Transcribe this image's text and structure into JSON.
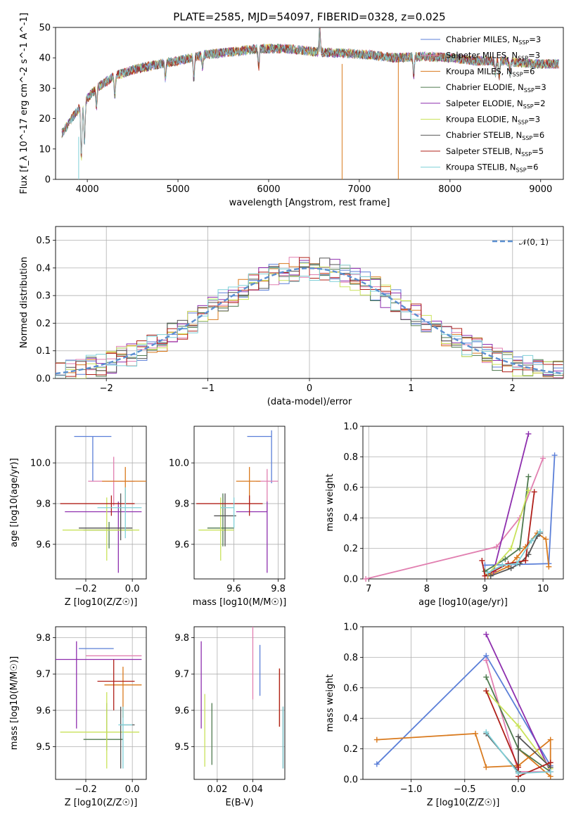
{
  "figure": {
    "title": "PLATE=2585, MJD=54097, FIBERID=0328, z=0.025"
  },
  "series_styles": [
    {
      "name": "Chabrier MILES",
      "nssp": "3",
      "color": "#5b7fd8"
    },
    {
      "name": "Salpeter MILES",
      "nssp": "3",
      "color": "#e17fb0"
    },
    {
      "name": "Kroupa MILES",
      "nssp": "6",
      "color": "#d97a1e"
    },
    {
      "name": "Chabrier ELODIE",
      "nssp": "3",
      "color": "#4f7a4f"
    },
    {
      "name": "Salpeter ELODIE",
      "nssp": "2",
      "color": "#8e2fae"
    },
    {
      "name": "Kroupa ELODIE",
      "nssp": "3",
      "color": "#c9e25a"
    },
    {
      "name": "Chabrier STELIB",
      "nssp": "6",
      "color": "#555555"
    },
    {
      "name": "Salpeter STELIB",
      "nssp": "5",
      "color": "#b0201a"
    },
    {
      "name": "Kroupa STELIB",
      "nssp": "6",
      "color": "#7fd0d8"
    }
  ],
  "chart_data": [
    {
      "id": "spectrum",
      "type": "line",
      "title": "PLATE=2585, MJD=54097, FIBERID=0328, z=0.025",
      "xlabel": "wavelength [Angstrom, rest frame]",
      "ylabel": "Flux [f_λ 10^-17 erg cm^-2 s^-1 A^-1]",
      "xlim": [
        3650,
        9250
      ],
      "ylim": [
        0,
        50
      ],
      "xticks": [
        4000,
        5000,
        6000,
        7000,
        8000,
        9000
      ],
      "yticks": [
        0,
        10,
        20,
        30,
        40,
        50
      ],
      "legend": "top-right",
      "continuum_x": [
        3720,
        3850,
        3950,
        4100,
        4300,
        4500,
        4800,
        5000,
        5300,
        5600,
        5900,
        6200,
        6500,
        6800,
        7100,
        7400,
        7700,
        8000,
        8300,
        8600,
        8900
      ],
      "continuum_y": [
        15,
        21,
        25,
        30,
        34,
        36,
        38,
        39,
        41,
        42,
        43,
        43,
        42,
        41.5,
        41,
        40,
        40.5,
        40,
        39,
        39,
        38
      ]
    },
    {
      "id": "residuals",
      "type": "histogram",
      "xlabel": "(data-model)/error",
      "ylabel": "Normed distribution",
      "xlim": [
        -2.5,
        2.5
      ],
      "ylim": [
        0,
        0.55
      ],
      "xticks": [
        -2,
        -1,
        0,
        1,
        2
      ],
      "yticks": [
        0.0,
        0.1,
        0.2,
        0.3,
        0.4,
        0.5
      ],
      "reference": {
        "label": "𝒩(0, 1)",
        "mean": 0,
        "sigma": 1,
        "color": "#5b8fd0"
      },
      "legend": "top-right"
    },
    {
      "id": "age_vs_Z",
      "type": "errorbar",
      "xlabel": "Z [log10(Z/Z☉)]",
      "ylabel": "age  [log10(age/yr)]",
      "xlim": [
        -0.33,
        0.06
      ],
      "ylim": [
        9.43,
        10.18
      ],
      "xticks": [
        -0.2,
        0.0
      ],
      "yticks": [
        9.6,
        9.8,
        10.0
      ],
      "points": [
        {
          "x": -0.17,
          "y": 10.13,
          "xerr": [
            0.08,
            0.08
          ],
          "yerr": [
            0.22,
            0.0
          ]
        },
        {
          "x": -0.08,
          "y": 9.91,
          "xerr": [
            0.11,
            0.09
          ],
          "yerr": [
            0.12,
            0.12
          ]
        },
        {
          "x": -0.03,
          "y": 9.91,
          "xerr": [
            0.1,
            0.09
          ],
          "yerr": [
            0.11,
            0.07
          ]
        },
        {
          "x": -0.1,
          "y": 9.67,
          "xerr": [
            0.11,
            0.1
          ],
          "yerr": [
            0.09,
            0.04
          ]
        },
        {
          "x": -0.06,
          "y": 9.76,
          "xerr": [
            0.23,
            0.1
          ],
          "yerr": [
            0.3,
            0.05
          ]
        },
        {
          "x": -0.11,
          "y": 9.67,
          "xerr": [
            0.19,
            0.14
          ],
          "yerr": [
            0.15,
            0.16
          ]
        },
        {
          "x": -0.05,
          "y": 9.68,
          "xerr": [
            0.18,
            0.05
          ],
          "yerr": [
            0.06,
            0.17
          ]
        },
        {
          "x": -0.09,
          "y": 9.8,
          "xerr": [
            0.22,
            0.1
          ],
          "yerr": [
            0.06,
            0.04
          ]
        },
        {
          "x": -0.03,
          "y": 9.78,
          "xerr": [
            0.12,
            0.07
          ],
          "yerr": [
            0.15,
            0.1
          ]
        }
      ]
    },
    {
      "id": "age_vs_mass",
      "type": "errorbar",
      "xlabel": "mass [log10(M/M☉)]",
      "ylabel": "",
      "xlim": [
        9.42,
        9.83
      ],
      "ylim": [
        9.43,
        10.18
      ],
      "xticks": [
        9.6,
        9.8
      ],
      "yticks": [
        9.6,
        9.8,
        10.0
      ],
      "points": [
        {
          "x": 9.77,
          "y": 10.13,
          "xerr": [
            0.11,
            0.0
          ],
          "yerr": [
            0.23,
            0.03
          ]
        },
        {
          "x": 9.75,
          "y": 9.91,
          "xerr": [
            0.05,
            0.05
          ],
          "yerr": [
            0.15,
            0.06
          ]
        },
        {
          "x": 9.67,
          "y": 9.91,
          "xerr": [
            0.06,
            0.05
          ],
          "yerr": [
            0.12,
            0.07
          ]
        },
        {
          "x": 9.55,
          "y": 9.68,
          "xerr": [
            0.07,
            0.05
          ],
          "yerr": [
            0.09,
            0.17
          ]
        },
        {
          "x": 9.75,
          "y": 9.76,
          "xerr": [
            0.14,
            0.0
          ],
          "yerr": [
            0.3,
            0.05
          ]
        },
        {
          "x": 9.54,
          "y": 9.67,
          "xerr": [
            0.1,
            0.06
          ],
          "yerr": [
            0.15,
            0.16
          ]
        },
        {
          "x": 9.56,
          "y": 9.74,
          "xerr": [
            0.05,
            0.05
          ],
          "yerr": [
            0.15,
            0.11
          ]
        },
        {
          "x": 9.67,
          "y": 9.8,
          "xerr": [
            0.24,
            0.06
          ],
          "yerr": [
            0.06,
            0.04
          ]
        },
        {
          "x": 9.6,
          "y": 9.78,
          "xerr": [
            0.06,
            0.0
          ],
          "yerr": [
            0.1,
            0.05
          ]
        }
      ]
    },
    {
      "id": "massweight_vs_age",
      "type": "line",
      "xlabel": "age  [log10(age/yr)]",
      "ylabel": "mass weight",
      "xlim": [
        6.9,
        10.35
      ],
      "ylim": [
        0,
        1.0
      ],
      "xticks": [
        7,
        8,
        9,
        10
      ],
      "yticks": [
        0.0,
        0.2,
        0.4,
        0.6,
        0.8,
        1.0
      ],
      "series": [
        {
          "points": [
            [
              9.0,
              0.09
            ],
            [
              10.1,
              0.1
            ],
            [
              10.2,
              0.81
            ]
          ]
        },
        {
          "points": [
            [
              6.95,
              0.0
            ],
            [
              9.2,
              0.21
            ],
            [
              9.6,
              0.4
            ],
            [
              10.0,
              0.79
            ]
          ]
        },
        {
          "points": [
            [
              9.05,
              0.02
            ],
            [
              9.4,
              0.08
            ],
            [
              9.55,
              0.14
            ],
            [
              9.7,
              0.21
            ],
            [
              9.9,
              0.3
            ],
            [
              10.05,
              0.26
            ],
            [
              10.1,
              0.08
            ]
          ]
        },
        {
          "points": [
            [
              9.0,
              0.05
            ],
            [
              9.35,
              0.13
            ],
            [
              9.6,
              0.2
            ],
            [
              9.75,
              0.67
            ]
          ]
        },
        {
          "points": [
            [
              9.15,
              0.05
            ],
            [
              9.75,
              0.95
            ]
          ]
        },
        {
          "points": [
            [
              9.05,
              0.03
            ],
            [
              9.45,
              0.2
            ],
            [
              9.75,
              0.58
            ]
          ]
        },
        {
          "points": [
            [
              9.1,
              0.02
            ],
            [
              9.45,
              0.07
            ],
            [
              9.6,
              0.1
            ],
            [
              9.75,
              0.16
            ],
            [
              9.9,
              0.28
            ],
            [
              9.95,
              0.3
            ]
          ]
        },
        {
          "points": [
            [
              8.95,
              0.12
            ],
            [
              9.0,
              0.02
            ],
            [
              9.4,
              0.1
            ],
            [
              9.7,
              0.12
            ],
            [
              9.85,
              0.57
            ]
          ]
        },
        {
          "points": [
            [
              9.05,
              0.04
            ],
            [
              9.3,
              0.09
            ],
            [
              9.55,
              0.1
            ],
            [
              9.8,
              0.25
            ],
            [
              9.95,
              0.31
            ]
          ]
        }
      ]
    },
    {
      "id": "mass_vs_Z",
      "type": "errorbar",
      "xlabel": "Z [log10(Z/Z☉)]",
      "ylabel": "mass [log10(M/M☉)]",
      "xlim": [
        -0.33,
        0.06
      ],
      "ylim": [
        9.41,
        9.83
      ],
      "xticks": [
        -0.2,
        0.0
      ],
      "yticks": [
        9.5,
        9.6,
        9.7,
        9.8
      ],
      "points": [
        {
          "x": -0.23,
          "y": 9.77,
          "xerr": [
            0.0,
            0.15
          ],
          "yerr": [
            0.0,
            0.0
          ]
        },
        {
          "x": -0.08,
          "y": 9.75,
          "xerr": [
            0.12,
            0.12
          ],
          "yerr": [
            0.0,
            0.0
          ]
        },
        {
          "x": -0.04,
          "y": 9.67,
          "xerr": [
            0.08,
            0.08
          ],
          "yerr": [
            0.09,
            0.05
          ]
        },
        {
          "x": -0.11,
          "y": 9.52,
          "xerr": [
            0.1,
            0.07
          ],
          "yerr": [
            0.03,
            0.1
          ]
        },
        {
          "x": -0.24,
          "y": 9.74,
          "xerr": [
            0.1,
            0.28
          ],
          "yerr": [
            0.19,
            0.05
          ]
        },
        {
          "x": -0.11,
          "y": 9.54,
          "xerr": [
            0.2,
            0.14
          ],
          "yerr": [
            0.1,
            0.11
          ]
        },
        {
          "x": -0.05,
          "y": 9.56,
          "xerr": [
            0.0,
            0.06
          ],
          "yerr": [
            0.12,
            0.05
          ]
        },
        {
          "x": -0.08,
          "y": 9.68,
          "xerr": [
            0.07,
            0.09
          ],
          "yerr": [
            0.08,
            0.06
          ]
        },
        {
          "x": -0.04,
          "y": 9.56,
          "xerr": [
            0.02,
            0.04
          ],
          "yerr": [
            0.12,
            0.05
          ]
        }
      ]
    },
    {
      "id": "mass_vs_EBV",
      "type": "errorbar",
      "xlabel": "E(B-V)",
      "ylabel": "",
      "xlim": [
        0.007,
        0.058
      ],
      "ylim": [
        9.41,
        9.83
      ],
      "xticks": [
        0.02,
        0.04
      ],
      "yticks": [
        9.5,
        9.6,
        9.7,
        9.8
      ],
      "points": [
        {
          "x": 0.044,
          "y": 9.71,
          "xerr": [
            0.0,
            0.0
          ],
          "yerr": [
            0.07,
            0.07
          ]
        },
        {
          "x": 0.04,
          "y": 9.74,
          "xerr": [
            0.0,
            0.0
          ],
          "yerr": [
            0.11,
            0.09
          ]
        },
        {
          "x": 0.055,
          "y": 9.675,
          "xerr": [
            0.0,
            0.0
          ],
          "yerr": [
            0.12,
            0.04
          ]
        },
        {
          "x": 0.017,
          "y": 9.53,
          "xerr": [
            0.0,
            0.0
          ],
          "yerr": [
            0.08,
            0.09
          ]
        },
        {
          "x": 0.011,
          "y": 9.67,
          "xerr": [
            0.0,
            0.0
          ],
          "yerr": [
            0.12,
            0.12
          ]
        },
        {
          "x": 0.013,
          "y": 9.545,
          "xerr": [
            0.0,
            0.0
          ],
          "yerr": [
            0.1,
            0.1
          ]
        },
        {
          "x": 0.057,
          "y": 9.52,
          "xerr": [
            0.0,
            0.0
          ],
          "yerr": [
            0.08,
            0.09
          ]
        },
        {
          "x": 0.055,
          "y": 9.665,
          "xerr": [
            0.0,
            0.0
          ],
          "yerr": [
            0.11,
            0.05
          ]
        },
        {
          "x": 0.057,
          "y": 9.52,
          "xerr": [
            0.0,
            0.0
          ],
          "yerr": [
            0.08,
            0.09
          ]
        }
      ]
    },
    {
      "id": "massweight_vs_Z",
      "type": "line",
      "xlabel": "Z [log10(Z/Z☉)]",
      "ylabel": "mass weight",
      "xlim": [
        -1.45,
        0.42
      ],
      "ylim": [
        0,
        1.0
      ],
      "xticks": [
        -1.0,
        -0.5,
        0.0
      ],
      "yticks": [
        0.0,
        0.2,
        0.4,
        0.6,
        0.8,
        1.0
      ],
      "series": [
        {
          "points": [
            [
              -1.32,
              0.1
            ],
            [
              -0.3,
              0.81
            ],
            [
              0.3,
              0.09
            ]
          ]
        },
        {
          "points": [
            [
              -0.3,
              0.78
            ],
            [
              0.0,
              0.05
            ],
            [
              0.3,
              0.05
            ]
          ]
        },
        {
          "points": [
            [
              -1.32,
              0.26
            ],
            [
              -0.4,
              0.3
            ],
            [
              -0.3,
              0.08
            ],
            [
              0.0,
              0.09
            ],
            [
              0.3,
              0.26
            ],
            [
              0.3,
              0.02
            ],
            [
              0.0,
              0.2
            ]
          ]
        },
        {
          "points": [
            [
              -0.3,
              0.67
            ],
            [
              0.0,
              0.2
            ],
            [
              0.3,
              0.05
            ]
          ]
        },
        {
          "points": [
            [
              -0.3,
              0.95
            ],
            [
              0.3,
              0.05
            ]
          ]
        },
        {
          "points": [
            [
              -0.3,
              0.58
            ],
            [
              0.0,
              0.35
            ],
            [
              0.3,
              0.07
            ]
          ]
        },
        {
          "points": [
            [
              -0.3,
              0.3
            ],
            [
              0.0,
              0.05
            ],
            [
              0.0,
              0.28
            ],
            [
              0.3,
              0.08
            ]
          ]
        },
        {
          "points": [
            [
              -0.3,
              0.58
            ],
            [
              0.0,
              0.08
            ],
            [
              0.0,
              0.02
            ],
            [
              0.3,
              0.11
            ]
          ]
        },
        {
          "points": [
            [
              -0.3,
              0.31
            ],
            [
              0.0,
              0.04
            ],
            [
              0.3,
              0.05
            ]
          ]
        }
      ]
    }
  ]
}
